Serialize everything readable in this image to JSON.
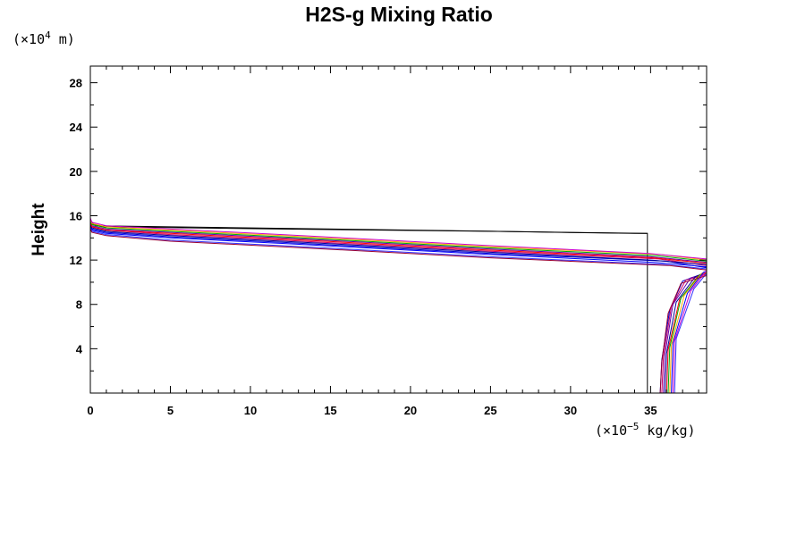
{
  "chart_data": {
    "type": "line",
    "title": "H2S-g Mixing Ratio",
    "ylabel": "Height",
    "xlabel": "",
    "x_unit": {
      "prefix": "(×10",
      "exponent": "−5",
      "suffix": " kg/kg)"
    },
    "y_unit": {
      "prefix": "(×10",
      "exponent": "4",
      "suffix": " m)"
    },
    "xlim": [
      0,
      38.5
    ],
    "ylim": [
      0,
      29.5
    ],
    "x_ticks": [
      0,
      5,
      10,
      15,
      20,
      25,
      30,
      35
    ],
    "y_ticks": [
      4,
      8,
      12,
      16,
      20,
      24,
      28
    ],
    "x_tick_labels": [
      "0",
      "5",
      "10",
      "15",
      "20",
      "25",
      "30",
      "35"
    ],
    "y_tick_labels": [
      "4",
      "8",
      "12",
      "16",
      "20",
      "24",
      "28"
    ],
    "grid": false,
    "legend": "none",
    "series": [
      {
        "color": "#000000",
        "x": [
          34.8,
          34.8,
          34.8,
          0.3,
          0,
          0
        ],
        "y": [
          0,
          11.2,
          14.4,
          15.1,
          15.6,
          16.0
        ]
      },
      {
        "color": "#000000",
        "x": [
          0,
          0.8,
          12,
          25,
          34,
          34.8
        ],
        "y": [
          15.3,
          15.0,
          14.8,
          14.6,
          14.4,
          14.4
        ]
      },
      {
        "color": "#0000cc",
        "x": [
          35.6,
          35.7,
          36.2,
          37.0,
          38.5,
          38.5,
          36.0,
          25.0,
          12.0,
          5.0,
          1.0,
          0.1,
          0
        ],
        "y": [
          0,
          3.0,
          7.5,
          10.1,
          10.9,
          11.3,
          11.9,
          12.6,
          13.6,
          14.1,
          14.5,
          14.8,
          15.1
        ]
      },
      {
        "color": "#cc0066",
        "x": [
          35.7,
          35.8,
          36.3,
          37.2,
          38.5,
          38.5,
          35.5,
          25.0,
          12.0,
          5.0,
          1.0,
          0.1,
          0
        ],
        "y": [
          0,
          3.3,
          7.8,
          10.2,
          10.7,
          11.5,
          12.1,
          12.8,
          13.8,
          14.3,
          14.7,
          15.0,
          15.3
        ]
      },
      {
        "color": "#6600aa",
        "x": [
          35.8,
          35.9,
          36.4,
          37.5,
          38.5,
          38.5,
          35.0,
          25.0,
          12.0,
          5.0,
          1.0,
          0.1,
          0
        ],
        "y": [
          0,
          3.5,
          8.0,
          10.4,
          10.8,
          11.8,
          12.3,
          13.0,
          14.0,
          14.5,
          14.8,
          15.1,
          15.5
        ]
      },
      {
        "color": "#000099",
        "x": [
          35.9,
          36.0,
          36.6,
          37.8,
          38.5,
          38.5,
          35.0,
          25.0,
          12.0,
          5.0,
          1.0,
          0.1,
          0
        ],
        "y": [
          0,
          3.6,
          8.2,
          10.5,
          10.9,
          11.6,
          12.0,
          12.7,
          13.7,
          14.2,
          14.6,
          14.9,
          15.2
        ]
      },
      {
        "color": "#ff0000",
        "x": [
          36.0,
          36.1,
          36.8,
          38.0,
          38.5,
          38.5,
          35.2,
          25.0,
          12.0,
          5.0,
          1.0,
          0.1,
          0
        ],
        "y": [
          0,
          3.9,
          8.4,
          10.6,
          10.8,
          11.7,
          12.2,
          12.9,
          13.9,
          14.4,
          14.7,
          15.0,
          15.4
        ]
      },
      {
        "color": "#00aa00",
        "x": [
          36.1,
          36.2,
          36.9,
          38.1,
          38.5,
          38.5,
          35.4,
          25.0,
          12.0,
          5.0,
          1.0,
          0.1,
          0
        ],
        "y": [
          0,
          4.1,
          8.6,
          10.7,
          10.9,
          11.9,
          12.4,
          13.1,
          14.1,
          14.6,
          14.9,
          15.2,
          15.6
        ]
      },
      {
        "color": "#ffaa00",
        "x": [
          36.2,
          36.3,
          37.1,
          38.2,
          38.5,
          38.5,
          35.6,
          25.0,
          12.0,
          5.0,
          1.0,
          0.1,
          0
        ],
        "y": [
          0,
          4.3,
          8.8,
          10.8,
          10.9,
          12.0,
          12.5,
          13.2,
          14.2,
          14.7,
          15.0,
          15.3,
          15.7
        ]
      },
      {
        "color": "#0000ff",
        "x": [
          36.3,
          36.4,
          37.3,
          38.3,
          38.5,
          38.5,
          35.1,
          25.0,
          12.0,
          5.0,
          1.0,
          0.1,
          0
        ],
        "y": [
          0,
          4.5,
          9.0,
          10.9,
          11.0,
          11.4,
          11.8,
          12.5,
          13.5,
          14.0,
          14.4,
          14.7,
          15.0
        ]
      },
      {
        "color": "#cc00cc",
        "x": [
          36.4,
          36.5,
          37.5,
          38.4,
          38.5,
          38.5,
          34.9,
          25.0,
          12.0,
          5.0,
          1.0,
          0.1,
          0
        ],
        "y": [
          0,
          4.7,
          9.2,
          10.9,
          11.0,
          12.1,
          12.6,
          13.3,
          14.3,
          14.8,
          15.1,
          15.4,
          15.8
        ]
      },
      {
        "color": "#3333ff",
        "x": [
          36.5,
          36.6,
          37.7,
          38.5,
          38.5,
          38.5,
          35.8,
          25.0,
          12.0,
          5.0,
          1.0,
          0.1,
          0
        ],
        "y": [
          0,
          4.9,
          9.4,
          10.8,
          11.1,
          11.2,
          11.6,
          12.3,
          13.3,
          13.8,
          14.3,
          14.6,
          14.9
        ]
      },
      {
        "color": "#990033",
        "x": [
          35.6,
          35.7,
          36.1,
          36.9,
          38.5,
          38.5,
          36.2,
          25.0,
          12.0,
          5.0,
          1.0,
          0.1,
          0
        ],
        "y": [
          0,
          2.8,
          7.2,
          9.9,
          10.6,
          11.1,
          11.5,
          12.2,
          13.2,
          13.7,
          14.2,
          14.5,
          14.8
        ]
      }
    ]
  }
}
